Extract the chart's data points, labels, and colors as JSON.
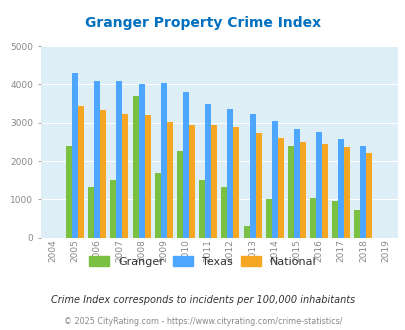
{
  "title": "Granger Property Crime Index",
  "years": [
    2004,
    2005,
    2006,
    2007,
    2008,
    2009,
    2010,
    2011,
    2012,
    2013,
    2014,
    2015,
    2016,
    2017,
    2018,
    2019
  ],
  "granger": [
    0,
    2380,
    1330,
    1500,
    3700,
    1680,
    2260,
    1510,
    1330,
    290,
    1020,
    2390,
    1040,
    950,
    720,
    0
  ],
  "texas": [
    0,
    4310,
    4080,
    4100,
    4000,
    4030,
    3810,
    3490,
    3360,
    3240,
    3040,
    2830,
    2760,
    2570,
    2380,
    0
  ],
  "national": [
    0,
    3440,
    3340,
    3240,
    3200,
    3030,
    2950,
    2940,
    2880,
    2740,
    2600,
    2490,
    2440,
    2360,
    2200,
    0
  ],
  "granger_color": "#7ac143",
  "texas_color": "#4da6ff",
  "national_color": "#f5a623",
  "bg_color": "#ddeef6",
  "title_color": "#0070c0",
  "ylim": [
    0,
    5000
  ],
  "yticks": [
    0,
    1000,
    2000,
    3000,
    4000,
    5000
  ],
  "subtitle": "Crime Index corresponds to incidents per 100,000 inhabitants",
  "footer": "© 2025 CityRating.com - https://www.cityrating.com/crime-statistics/",
  "subtitle_color": "#333333",
  "footer_color": "#888888"
}
